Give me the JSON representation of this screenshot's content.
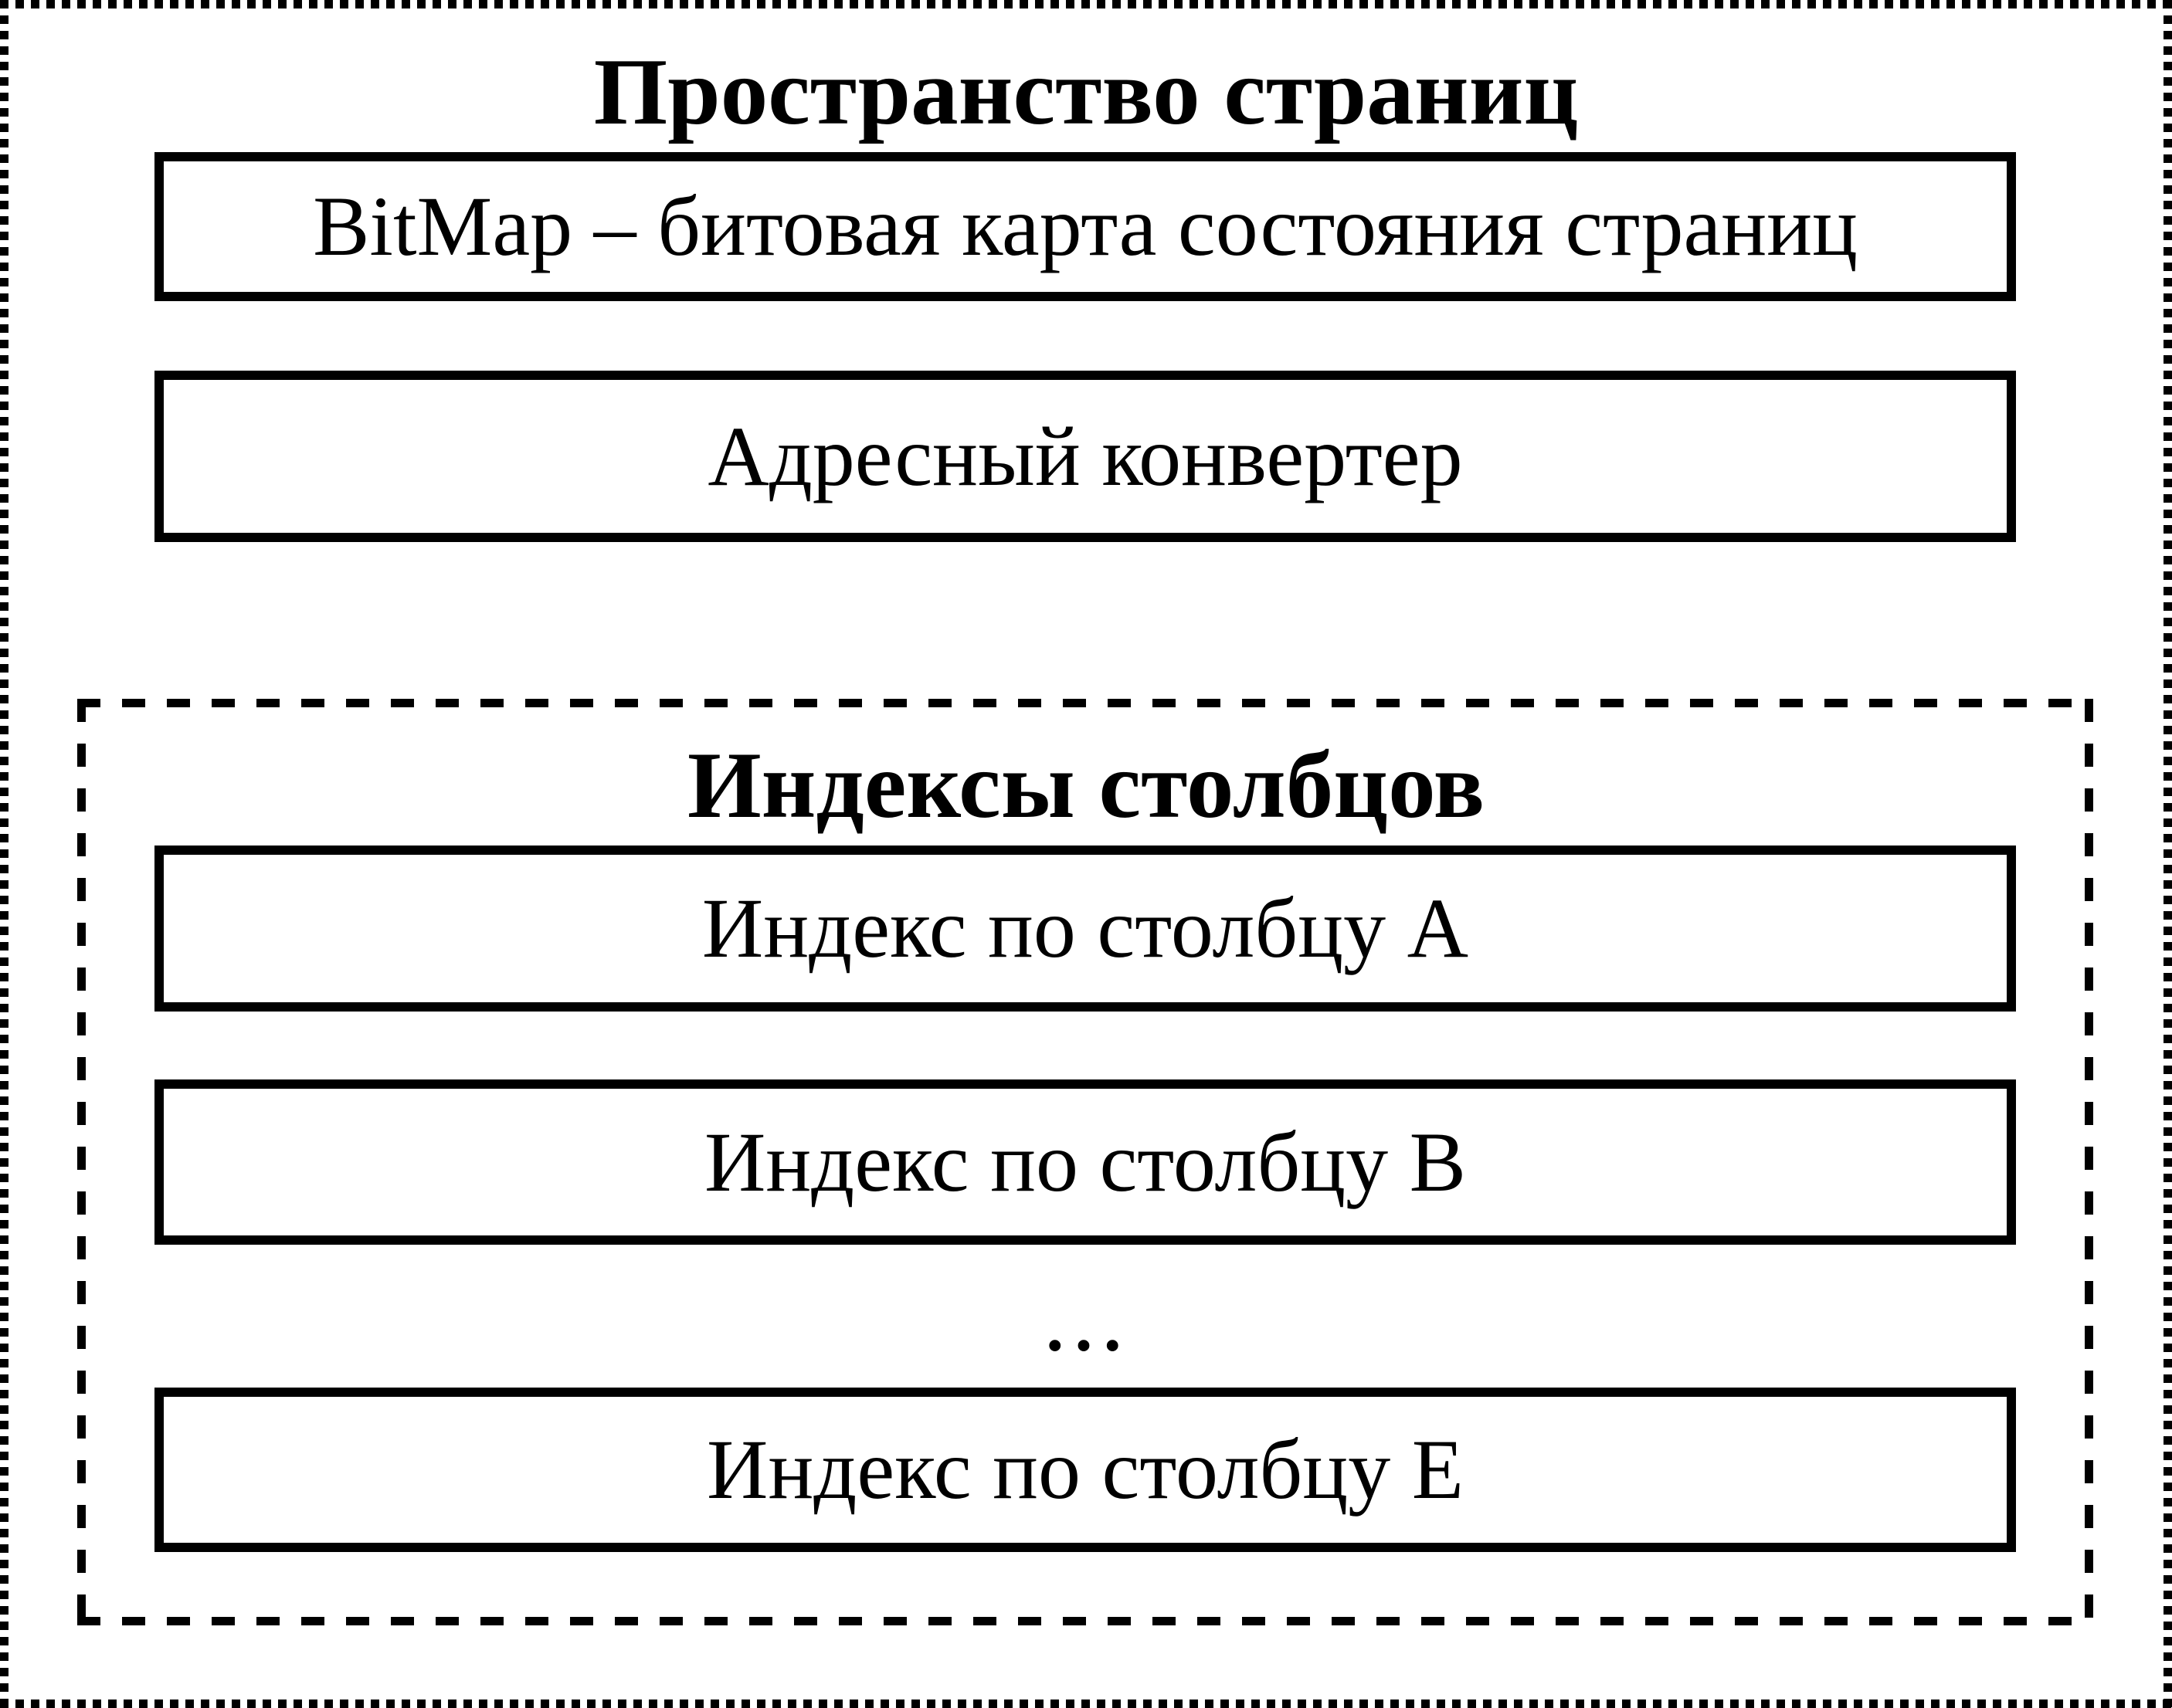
{
  "page_space": {
    "title": "Пространство страниц",
    "bitmap_label": "BitMap – битовая карта состояния страниц",
    "converter_label": "Адресный конвертер",
    "column_indexes": {
      "title": "Индексы столбцов",
      "ellipsis": "...",
      "items": [
        {
          "label": "Индекс по столбцу A"
        },
        {
          "label": "Индекс по столбцу B"
        },
        {
          "label": "Индекс по столбцу E"
        }
      ]
    },
    "colors": {
      "foreground": "#000000",
      "background": "#ffffff"
    }
  }
}
